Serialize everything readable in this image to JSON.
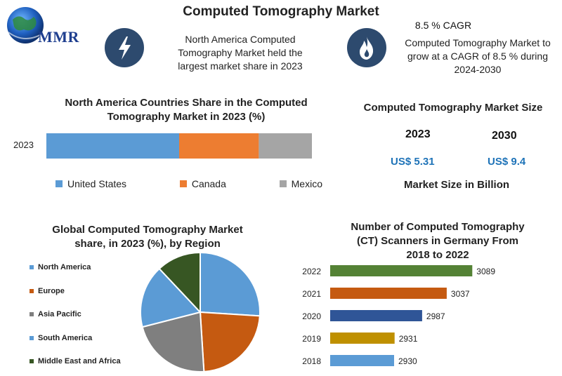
{
  "header": {
    "title": "Computed Tomography Market",
    "logo_text": "MMR"
  },
  "info_left": {
    "text_lines": [
      "North America Computed",
      "Tomography Market held the",
      "largest market share in 2023"
    ],
    "icon": "lightning-icon"
  },
  "info_right": {
    "cagr_label": "8.5 % CAGR",
    "text_lines": [
      "Computed Tomography Market to",
      "grow at a CAGR of 8.5 % during",
      "2024-2030"
    ],
    "icon": "flame-icon"
  },
  "market_size": {
    "title": "Computed Tomography Market Size",
    "years": [
      "2023",
      "2030"
    ],
    "values": [
      "US$ 5.31",
      "US$ 9.4"
    ],
    "footer": "Market Size in Billion"
  },
  "chart_data": [
    {
      "type": "bar",
      "orientation": "horizontal-stacked",
      "title": "North America Countries Share in the Computed Tomography   Market in 2023 (%)",
      "title_lines": [
        "North America Countries Share in the Computed",
        "Tomography   Market in 2023 (%)"
      ],
      "categories": [
        "2023"
      ],
      "series": [
        {
          "name": "United States",
          "values": [
            50
          ],
          "color": "#5b9bd5"
        },
        {
          "name": "Canada",
          "values": [
            30
          ],
          "color": "#ed7d31"
        },
        {
          "name": "Mexico",
          "values": [
            20
          ],
          "color": "#a5a5a5"
        }
      ],
      "legend": "bottom"
    },
    {
      "type": "pie",
      "title": "Global Computed Tomography  Market share, in 2023 (%), by Region",
      "title_lines": [
        "Global Computed Tomography  Market",
        "share, in 2023 (%), by Region"
      ],
      "labels": [
        "North America",
        "Europe",
        "Asia Pacific",
        "South America",
        "Middle East and Africa"
      ],
      "values": [
        26,
        23,
        22,
        17,
        12
      ],
      "colors": [
        "#5b9bd5",
        "#c55a11",
        "#7f7f7f",
        "#5b9bd5",
        "#375623"
      ],
      "legend": "left"
    },
    {
      "type": "bar",
      "orientation": "horizontal",
      "title": "Number of Computed Tomography (CT) Scanners in Germany From 2018 to 2022",
      "title_lines": [
        "Number of Computed Tomography",
        "(CT) Scanners in Germany From",
        "2018 to 2022"
      ],
      "categories": [
        "2022",
        "2021",
        "2020",
        "2019",
        "2018"
      ],
      "values": [
        3089,
        3037,
        2987,
        2931,
        2930
      ],
      "colors": [
        "#548235",
        "#c55a11",
        "#2f5597",
        "#bf9000",
        "#5b9bd5"
      ],
      "xlim": [
        2800,
        3100
      ]
    }
  ]
}
